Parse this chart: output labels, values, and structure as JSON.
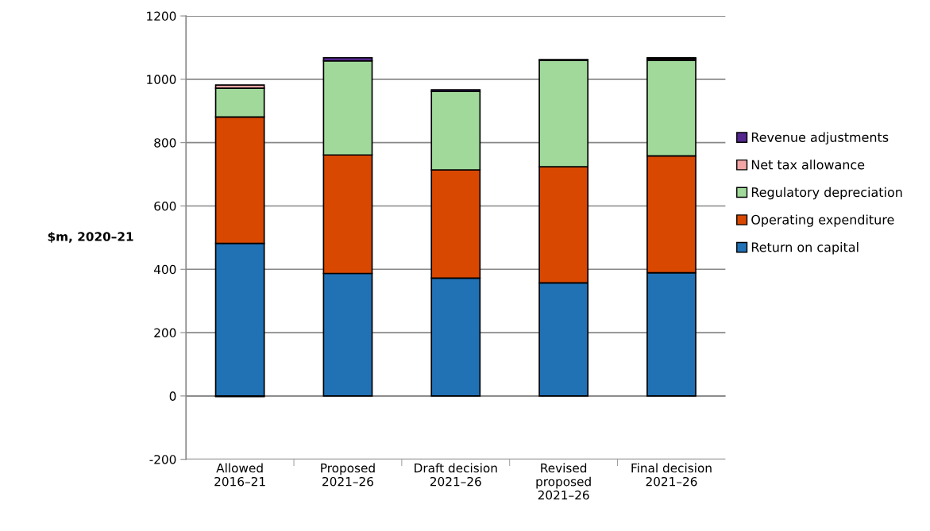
{
  "chart_data": {
    "type": "bar",
    "stacked": true,
    "ylabel": "$m, 2020–21",
    "categories": [
      "Allowed\n2016–21",
      "Proposed\n2021–26",
      "Draft decision\n2021–26",
      "Revised\nproposed\n2021–26",
      "Final decision\n2021–26"
    ],
    "series": [
      {
        "name": "Return on capital",
        "color": "#2171b5",
        "values": [
          482,
          387,
          372,
          357,
          389
        ]
      },
      {
        "name": "Operating expenditure",
        "color": "#d94801",
        "values": [
          399,
          374,
          342,
          367,
          369
        ]
      },
      {
        "name": "Regulatory depreciation",
        "color": "#a1d99b",
        "values": [
          91,
          297,
          248,
          336,
          302
        ]
      },
      {
        "name": "Net tax allowance",
        "color": "#f4a6a6",
        "values": [
          10,
          null,
          null,
          null,
          5
        ]
      },
      {
        "name": "Revenue adjustments",
        "color": "#54278f",
        "values": [
          -2,
          10,
          5,
          2,
          3
        ]
      }
    ],
    "ylim": [
      -200,
      1200
    ],
    "yticks": [
      -200,
      0,
      200,
      400,
      600,
      800,
      1000,
      1200
    ],
    "grid": "y",
    "legend": "right"
  }
}
